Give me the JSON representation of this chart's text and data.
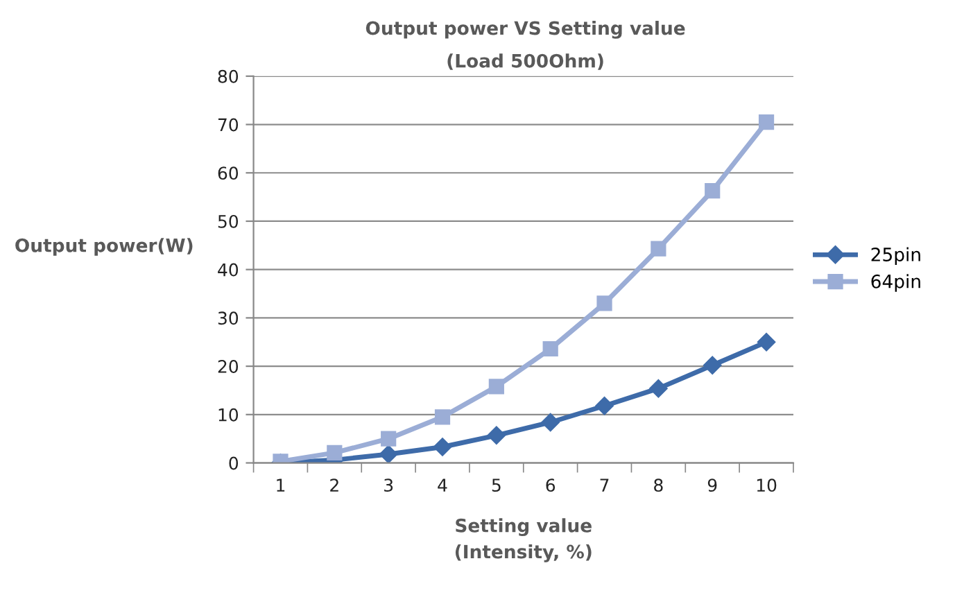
{
  "chart_data": {
    "type": "line",
    "title": "Output power VS Setting value",
    "subtitle": "(Load 500Ohm)",
    "xlabel": "Setting value\n(Intensity, %)",
    "ylabel": "Output power(W)",
    "categories": [
      "1",
      "2",
      "3",
      "4",
      "5",
      "6",
      "7",
      "8",
      "9",
      "10"
    ],
    "series": [
      {
        "name": "25pin",
        "color": "#3e6ba9",
        "marker": "diamond",
        "values": [
          0,
          0.6,
          1.8,
          3.3,
          5.7,
          8.4,
          11.8,
          15.4,
          20.2,
          25
        ]
      },
      {
        "name": "64pin",
        "color": "#9badd6",
        "marker": "square",
        "values": [
          0.3,
          2.1,
          5,
          9.5,
          15.8,
          23.6,
          33,
          44.3,
          56.3,
          70.5
        ]
      }
    ],
    "ylim": [
      0,
      80
    ],
    "yticks": [
      0,
      10,
      20,
      30,
      40,
      50,
      60,
      70,
      80
    ],
    "grid": "y",
    "legend": "right",
    "line_style": "solid"
  }
}
